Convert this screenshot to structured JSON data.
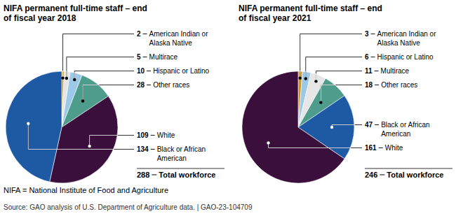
{
  "chart_data": [
    {
      "type": "pie",
      "title": "NIFA permanent full-time staff – end of fiscal year 2018",
      "categories": [
        "American Indian or Alaska Native",
        "Multirace",
        "Hispanic or Latino",
        "Other races",
        "White",
        "Black or African American"
      ],
      "values": [
        2,
        5,
        10,
        28,
        109,
        134
      ],
      "colors": [
        "#c9972b",
        "#e6e6e6",
        "#9dc9e8",
        "#4d9c8c",
        "#3b0f3c",
        "#1e5aa3"
      ],
      "data_labels": true,
      "total": 288,
      "total_label": "Total workforce"
    },
    {
      "type": "pie",
      "title": "NIFA permanent full-time staff – end of fiscal year 2021",
      "categories": [
        "American Indian or Alaska Native",
        "Hispanic or Latino",
        "Multirace",
        "Other races",
        "Black or African American",
        "White"
      ],
      "values": [
        3,
        6,
        11,
        18,
        47,
        161
      ],
      "colors": [
        "#c9972b",
        "#9dc9e8",
        "#e6e6e6",
        "#4d9c8c",
        "#1e5aa3",
        "#3b0f3c"
      ],
      "data_labels": true,
      "total": 246,
      "total_label": "Total workforce"
    }
  ],
  "footnotes": [
    "NIFA = National Institute of Food and Agriculture",
    "Source: GAO analysis of U.S. Department of Agriculture data. | GAO-23-104709"
  ]
}
